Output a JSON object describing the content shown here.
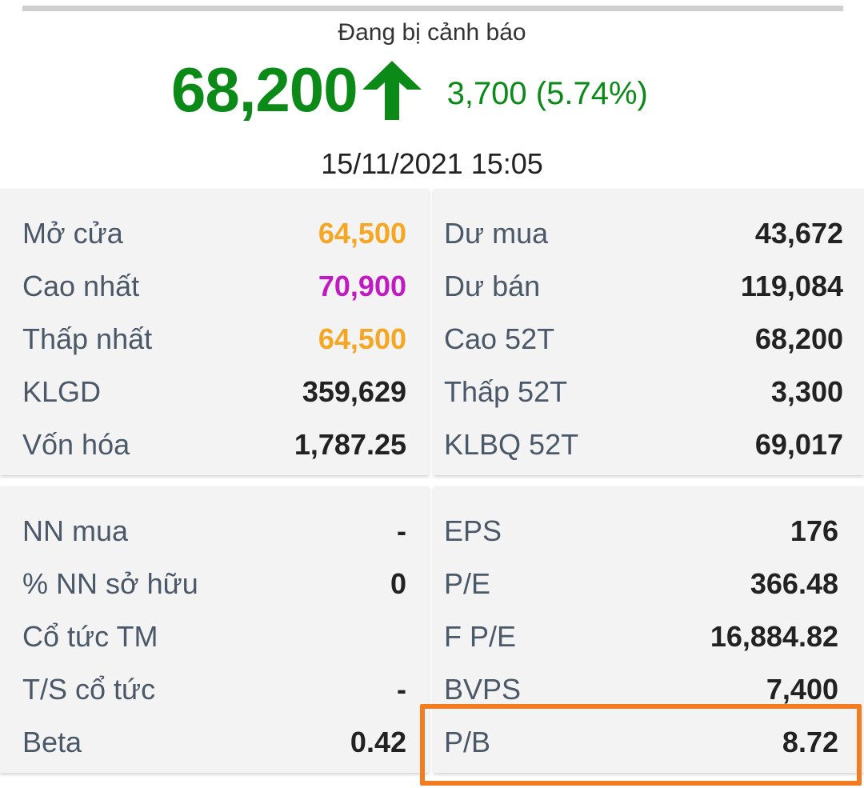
{
  "header": {
    "warning_text": "Đang bị cảnh báo",
    "price": "68,200",
    "change": "3,700 (5.74%)",
    "datetime": "15/11/2021 15:05",
    "direction_icon": "arrow-up-icon",
    "up_color": "#0b8a18"
  },
  "colors": {
    "label": "#4a5868",
    "value_default": "#222222",
    "value_orange": "#f5a623",
    "value_magenta": "#c21ac2",
    "highlight_border": "#f47c20"
  },
  "panel1": {
    "left": [
      {
        "label": "Mở cửa",
        "value": "64,500",
        "tone": "orange"
      },
      {
        "label": "Cao nhất",
        "value": "70,900",
        "tone": "magenta"
      },
      {
        "label": "Thấp nhất",
        "value": "64,500",
        "tone": "orange"
      },
      {
        "label": "KLGD",
        "value": "359,629",
        "tone": "default"
      },
      {
        "label": "Vốn hóa",
        "value": "1,787.25",
        "tone": "default"
      }
    ],
    "right": [
      {
        "label": "Dư mua",
        "value": "43,672"
      },
      {
        "label": "Dư bán",
        "value": "119,084"
      },
      {
        "label": "Cao 52T",
        "value": "68,200"
      },
      {
        "label": "Thấp 52T",
        "value": "3,300"
      },
      {
        "label": "KLBQ 52T",
        "value": "69,017"
      }
    ]
  },
  "panel2": {
    "left": [
      {
        "label": "NN mua",
        "value": "-"
      },
      {
        "label": "% NN sở hữu",
        "value": "0"
      },
      {
        "label": "Cổ tức TM",
        "value": ""
      },
      {
        "label": "T/S cổ tức",
        "value": "-"
      },
      {
        "label": "Beta",
        "value": "0.42"
      }
    ],
    "right": [
      {
        "label": "EPS",
        "value": "176"
      },
      {
        "label": "P/E",
        "value": "366.48"
      },
      {
        "label": "F P/E",
        "value": "16,884.82"
      },
      {
        "label": "BVPS",
        "value": "7,400"
      },
      {
        "label": "P/B",
        "value": "8.72"
      }
    ]
  }
}
